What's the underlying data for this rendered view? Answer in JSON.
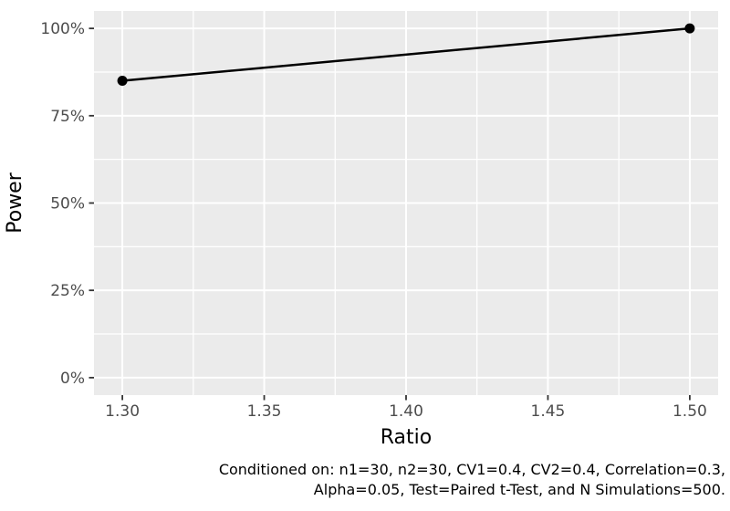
{
  "chart_data": {
    "type": "line",
    "title": "",
    "xlabel": "Ratio",
    "ylabel": "Power",
    "x": [
      1.3,
      1.5
    ],
    "series": [
      {
        "name": "Power",
        "values": [
          0.85,
          1.0
        ],
        "color": "#000000"
      }
    ],
    "xlim": [
      1.29,
      1.51
    ],
    "ylim": [
      -0.05,
      1.05
    ],
    "x_ticks": [
      {
        "value": 1.3,
        "label": "1.30"
      },
      {
        "value": 1.35,
        "label": "1.35"
      },
      {
        "value": 1.4,
        "label": "1.40"
      },
      {
        "value": 1.45,
        "label": "1.45"
      },
      {
        "value": 1.5,
        "label": "1.50"
      }
    ],
    "y_ticks": [
      {
        "value": 0.0,
        "label": "0%"
      },
      {
        "value": 0.25,
        "label": "25%"
      },
      {
        "value": 0.5,
        "label": "50%"
      },
      {
        "value": 0.75,
        "label": "75%"
      },
      {
        "value": 1.0,
        "label": "100%"
      }
    ],
    "x_minor": [
      1.325,
      1.375,
      1.425,
      1.475
    ],
    "y_minor": [
      0.125,
      0.375,
      0.625,
      0.875
    ],
    "grid": "major+minor",
    "legend": "none",
    "caption": [
      "Conditioned on: n1=30, n2=30, CV1=0.4, CV2=0.4, Correlation=0.3,",
      "Alpha=0.05, Test=Paired t-Test, and N Simulations=500."
    ],
    "colors": {
      "background": "#FFFFFF",
      "panel_bg": "#EBEBEB",
      "grid": "#FFFFFF",
      "series": "#000000",
      "tick_label": "#4D4D4D",
      "tick_mark": "#333333",
      "axis_title": "#000000",
      "caption": "#000000"
    },
    "point_radius": 5.5,
    "line_width": 2.5
  }
}
